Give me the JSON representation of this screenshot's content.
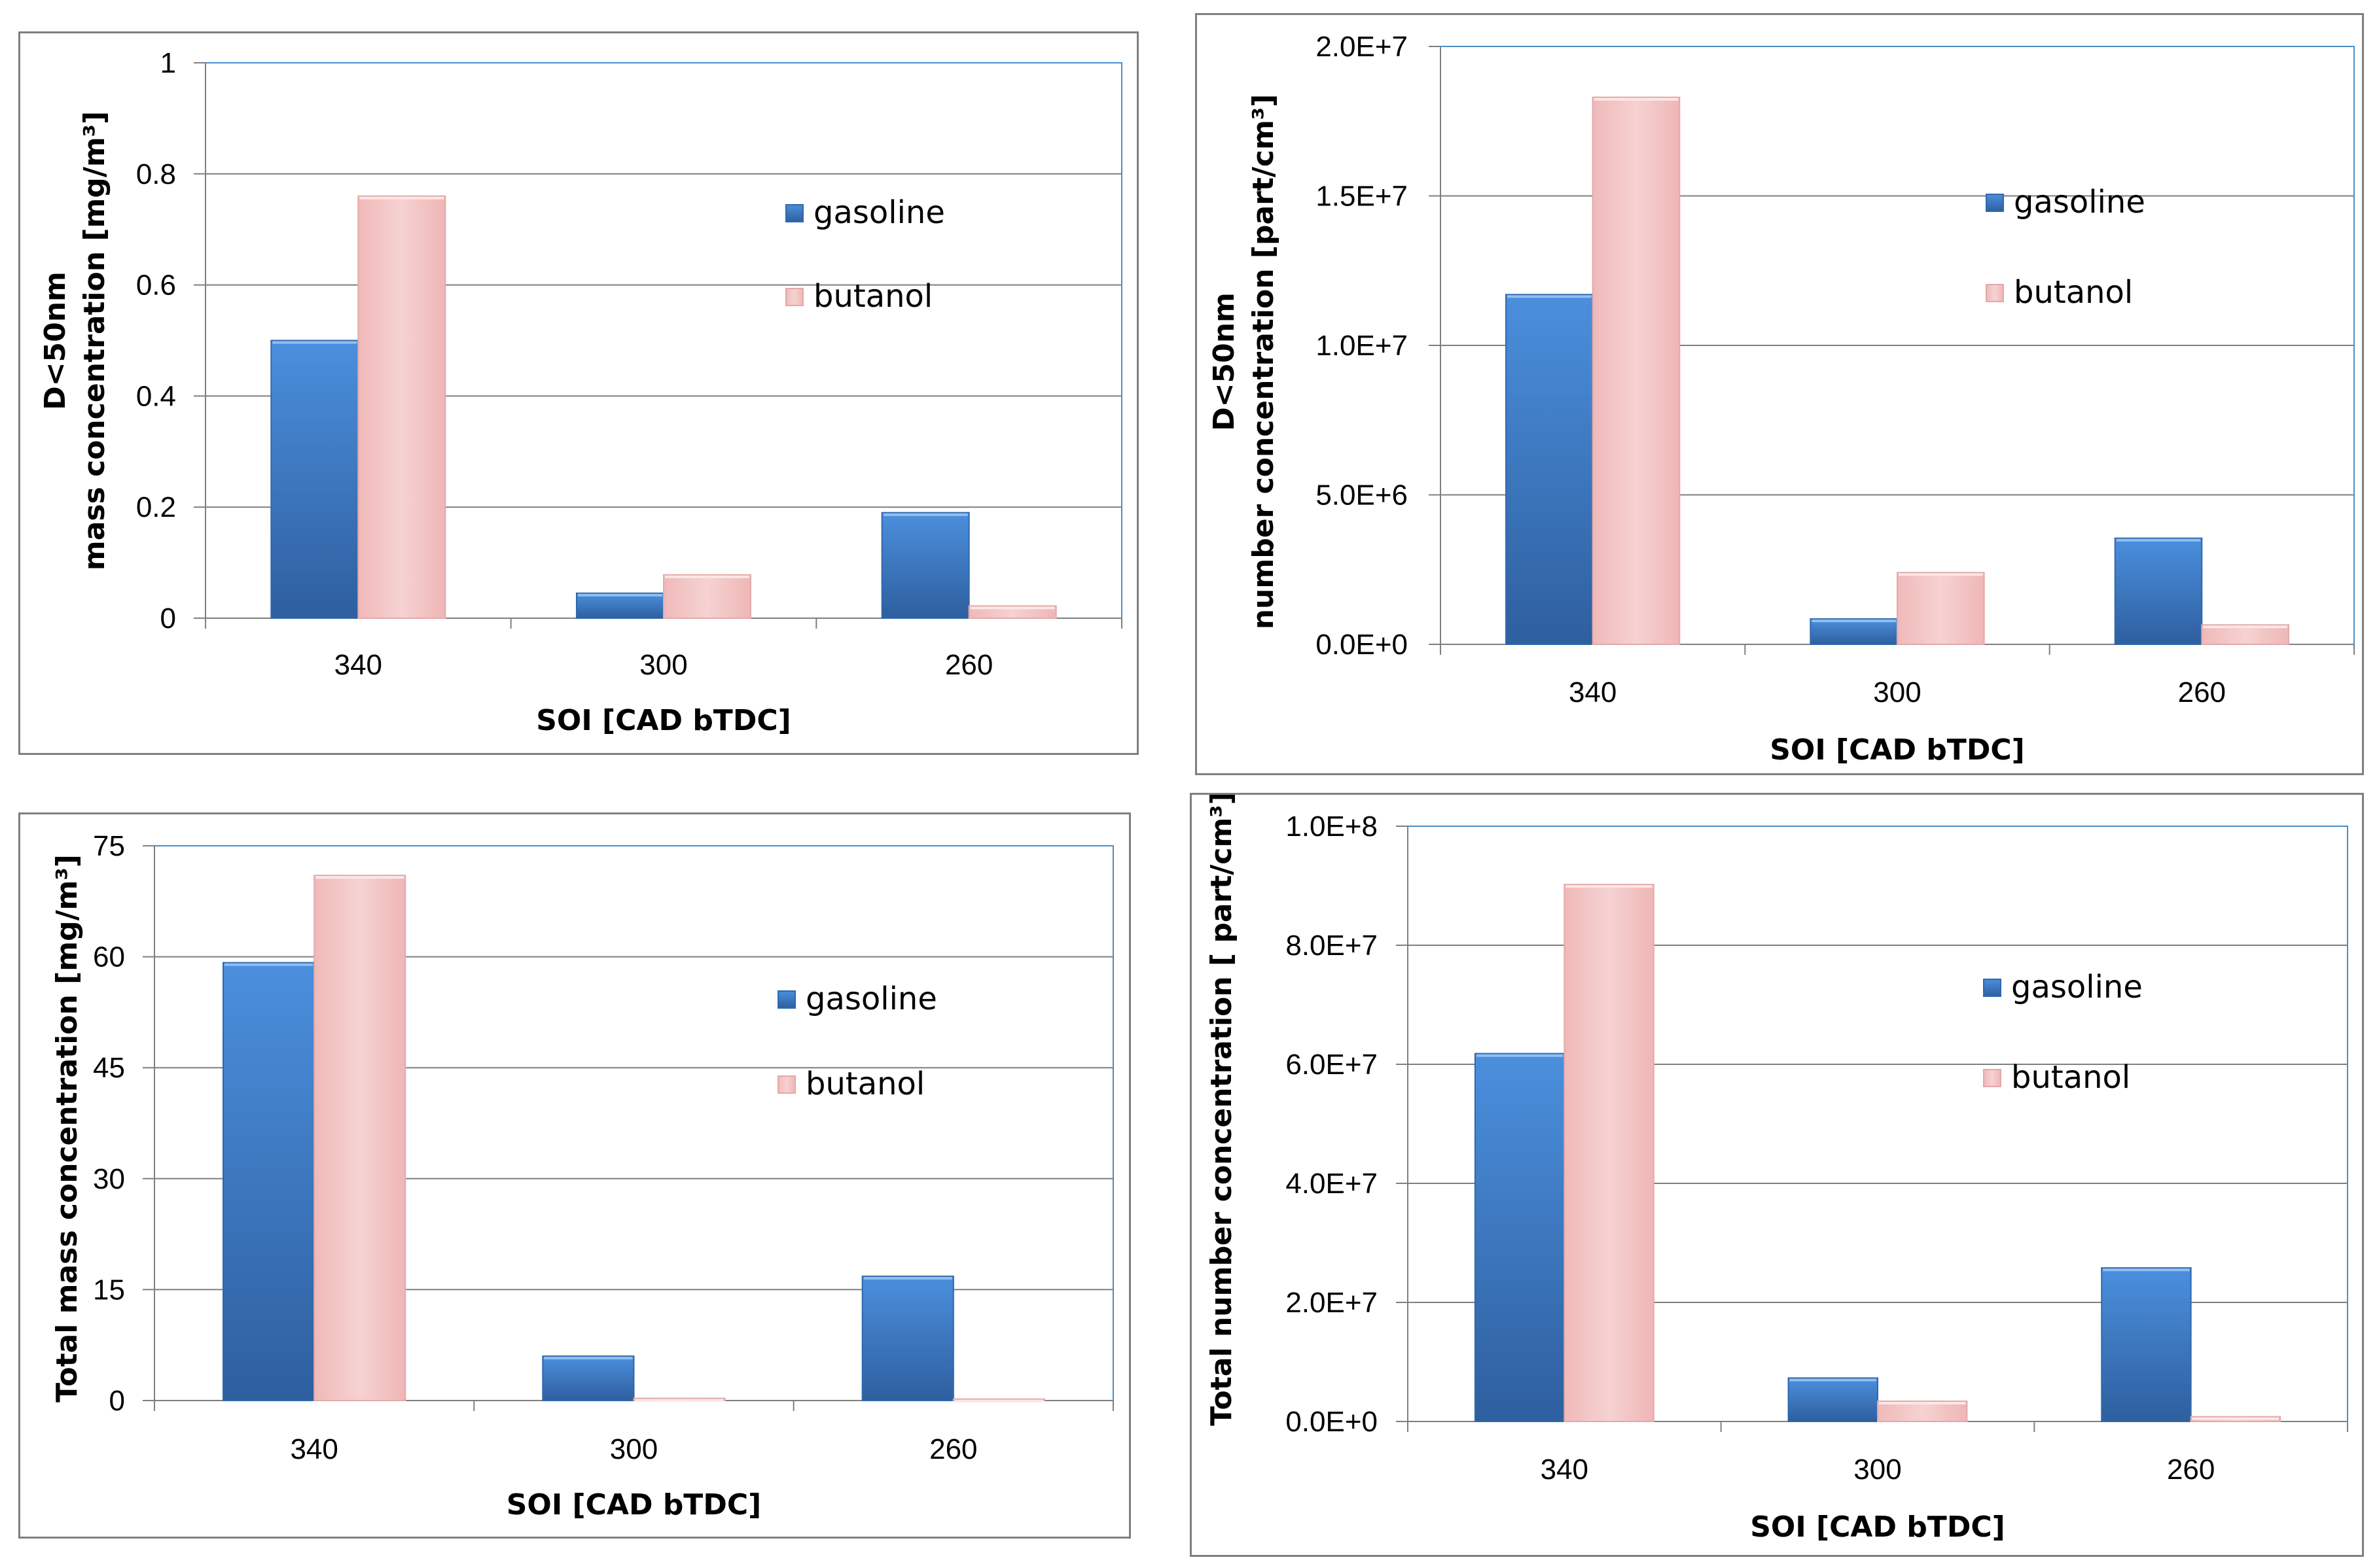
{
  "colors": {
    "gasoline": "#3a78c8",
    "butanol": "#f3c4c4",
    "plot_border": "#4a8fc8",
    "grid": "#7f7f7f"
  },
  "legend": {
    "series": [
      "gasoline",
      "butanol"
    ]
  },
  "chart_data": [
    {
      "type": "bar",
      "categories": [
        "340",
        "300",
        "260"
      ],
      "series": [
        {
          "name": "gasoline",
          "values": [
            0.5,
            0.045,
            0.19
          ]
        },
        {
          "name": "butanol",
          "values": [
            0.76,
            0.078,
            0.022
          ]
        }
      ],
      "ylim": [
        0,
        1
      ],
      "yticks": [
        "0",
        "0.2",
        "0.4",
        "0.6",
        "0.8",
        "1"
      ],
      "ytick_values": [
        0,
        0.2,
        0.4,
        0.6,
        0.8,
        1
      ],
      "xlabel": "SOI [CAD bTDC]",
      "ylabel": [
        "D<50nm",
        "mass concentration [mg/m³]"
      ]
    },
    {
      "type": "bar",
      "categories": [
        "340",
        "300",
        "260"
      ],
      "series": [
        {
          "name": "gasoline",
          "values": [
            11700000,
            850000,
            3550000
          ]
        },
        {
          "name": "butanol",
          "values": [
            18300000,
            2400000,
            650000
          ]
        }
      ],
      "ylim": [
        0,
        20000000
      ],
      "yticks": [
        "0.0E+0",
        "5.0E+6",
        "1.0E+7",
        "1.5E+7",
        "2.0E+7"
      ],
      "ytick_values": [
        0,
        5000000,
        10000000,
        15000000,
        20000000
      ],
      "xlabel": "SOI [CAD bTDC]",
      "ylabel": [
        "D<50nm",
        "number concentration [part/cm³]"
      ]
    },
    {
      "type": "bar",
      "categories": [
        "340",
        "300",
        "260"
      ],
      "series": [
        {
          "name": "gasoline",
          "values": [
            59.2,
            6.0,
            16.8
          ]
        },
        {
          "name": "butanol",
          "values": [
            71.0,
            0.3,
            0.2
          ]
        }
      ],
      "ylim": [
        0,
        75
      ],
      "yticks": [
        "0",
        "15",
        "30",
        "45",
        "60",
        "75"
      ],
      "ytick_values": [
        0,
        15,
        30,
        45,
        60,
        75
      ],
      "xlabel": "SOI [CAD bTDC]",
      "ylabel": [
        "Total mass concentration [mg/m³]"
      ]
    },
    {
      "type": "bar",
      "categories": [
        "340",
        "300",
        "260"
      ],
      "series": [
        {
          "name": "gasoline",
          "values": [
            61800000,
            7300000,
            25800000
          ]
        },
        {
          "name": "butanol",
          "values": [
            90200000,
            3400000,
            800000
          ]
        }
      ],
      "ylim": [
        0,
        100000000
      ],
      "yticks": [
        "0.0E+0",
        "2.0E+7",
        "4.0E+7",
        "6.0E+7",
        "8.0E+7",
        "1.0E+8"
      ],
      "ytick_values": [
        0,
        20000000,
        40000000,
        60000000,
        80000000,
        100000000
      ],
      "xlabel": "SOI [CAD bTDC]",
      "ylabel": [
        "Total number concentration [ part/cm³]"
      ]
    }
  ]
}
